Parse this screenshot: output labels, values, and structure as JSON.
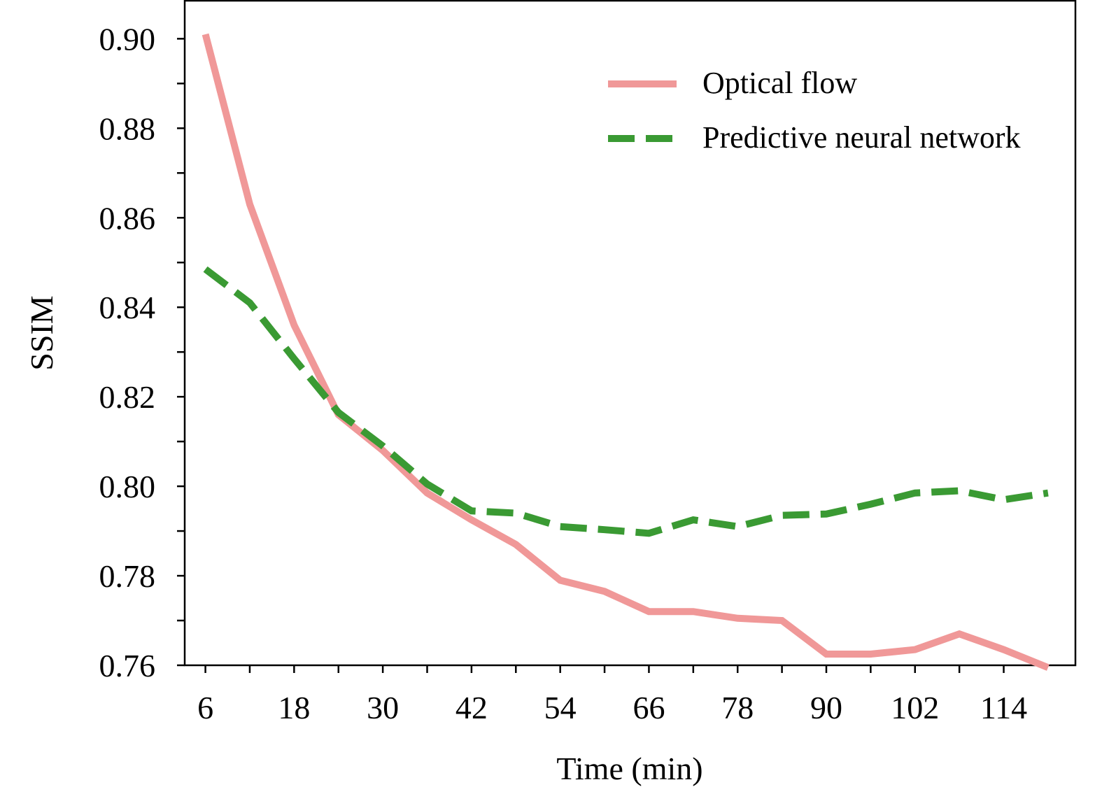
{
  "chart_data": {
    "type": "line",
    "title": "",
    "xlabel": "Time (min)",
    "ylabel": "SSIM",
    "x": [
      6,
      12,
      18,
      24,
      30,
      36,
      42,
      48,
      54,
      60,
      66,
      72,
      78,
      84,
      90,
      96,
      102,
      108,
      114,
      120
    ],
    "xlim": [
      3.2,
      123.7
    ],
    "ylim": [
      0.76,
      0.9085
    ],
    "xticks": [
      6,
      12,
      18,
      24,
      30,
      36,
      42,
      48,
      54,
      60,
      66,
      72,
      78,
      84,
      90,
      96,
      102,
      108,
      114
    ],
    "xtick_labels": [
      "6",
      "18",
      "30",
      "42",
      "54",
      "66",
      "78",
      "90",
      "102",
      "114"
    ],
    "yticks": [
      0.76,
      0.77,
      0.78,
      0.79,
      0.8,
      0.81,
      0.82,
      0.83,
      0.84,
      0.85,
      0.86,
      0.87,
      0.88,
      0.89,
      0.9
    ],
    "ytick_labels": [
      "0.76",
      "0.78",
      "0.80",
      "0.82",
      "0.84",
      "0.86",
      "0.88",
      "0.90"
    ],
    "grid": false,
    "legend_position": "top-right",
    "series": [
      {
        "name": "Optical flow",
        "color": "#f09898",
        "style": "solid",
        "values": [
          0.901,
          0.863,
          0.836,
          0.816,
          0.808,
          0.7985,
          0.7925,
          0.787,
          0.779,
          0.7765,
          0.772,
          0.772,
          0.7705,
          0.77,
          0.7625,
          0.7625,
          0.7635,
          0.767,
          0.7635,
          0.7595
        ]
      },
      {
        "name": "Predictive neural network",
        "color": "#3a9a33",
        "style": "dashed",
        "values": [
          0.8485,
          0.841,
          0.8285,
          0.8165,
          0.809,
          0.8005,
          0.7945,
          0.794,
          0.791,
          0.7903,
          0.7895,
          0.7925,
          0.791,
          0.7935,
          0.7938,
          0.796,
          0.7985,
          0.799,
          0.797,
          0.7985
        ]
      }
    ]
  }
}
